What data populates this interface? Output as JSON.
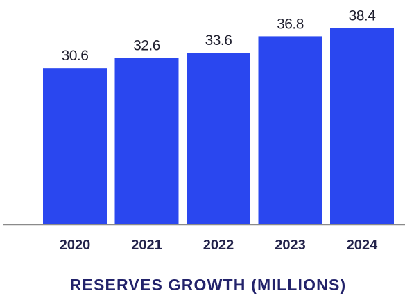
{
  "chart_data": {
    "type": "bar",
    "title": "RESERVES GROWTH (MILLIONS)",
    "xlabel": "",
    "ylabel": "",
    "categories": [
      "2020",
      "2021",
      "2022",
      "2023",
      "2024"
    ],
    "values": [
      30.6,
      32.6,
      33.6,
      36.8,
      38.4
    ],
    "value_labels": [
      "30.6",
      "32.6",
      "33.6",
      "36.8",
      "38.4"
    ],
    "ylim": [
      0,
      40
    ],
    "grid": false,
    "legend": "none",
    "bar_color": "#2a47ef",
    "axis_color": "#8a8a8a"
  }
}
